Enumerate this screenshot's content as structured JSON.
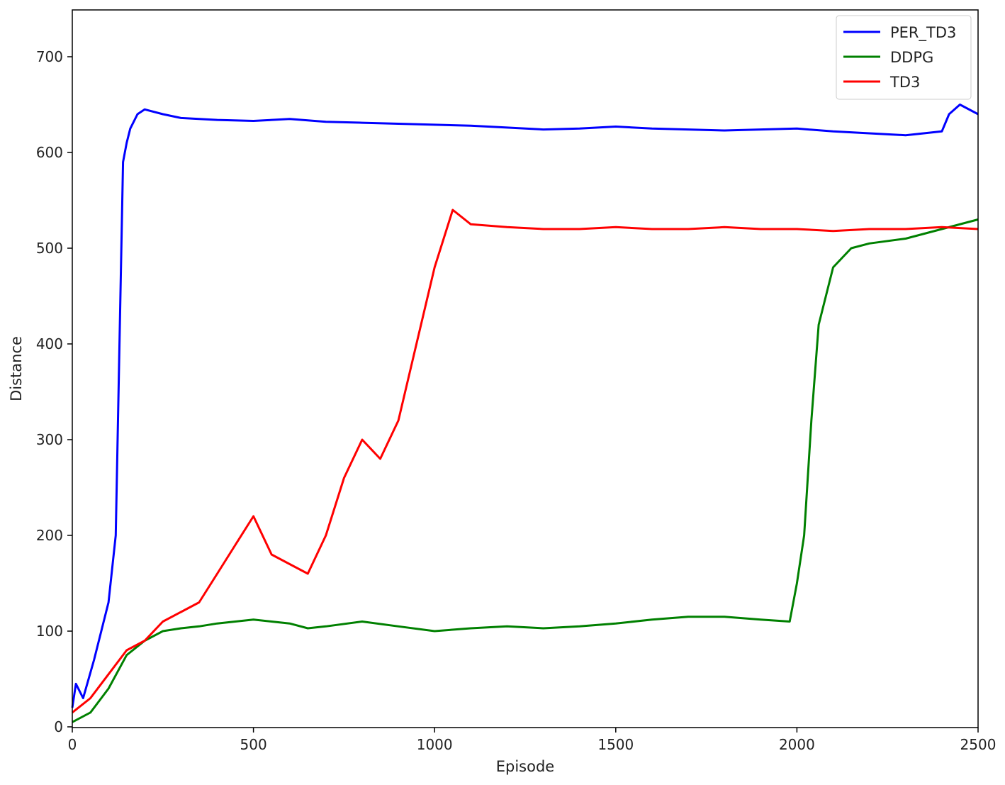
{
  "chart_data": {
    "type": "line",
    "xlabel": "Episode",
    "ylabel": "Distance",
    "xlim": [
      0,
      2500
    ],
    "ylim": [
      0,
      750
    ],
    "xticks": [
      "0",
      "500",
      "1000",
      "1500",
      "2000",
      "2500"
    ],
    "yticks": [
      "0",
      "100",
      "200",
      "300",
      "400",
      "500",
      "600",
      "700"
    ],
    "grid": false,
    "legend_position": "top-right",
    "series": [
      {
        "name": "PER_TD3",
        "color": "#0000ff",
        "x": [
          0,
          10,
          30,
          60,
          80,
          100,
          120,
          140,
          150,
          160,
          180,
          200,
          250,
          300,
          400,
          500,
          600,
          700,
          800,
          900,
          1000,
          1100,
          1200,
          1300,
          1400,
          1500,
          1600,
          1700,
          1800,
          1900,
          2000,
          2100,
          2200,
          2300,
          2400,
          2420,
          2450,
          2500
        ],
        "y": [
          20,
          45,
          30,
          70,
          100,
          130,
          200,
          590,
          610,
          625,
          640,
          645,
          640,
          636,
          634,
          633,
          635,
          632,
          631,
          630,
          629,
          628,
          626,
          624,
          625,
          627,
          625,
          624,
          623,
          624,
          625,
          622,
          620,
          618,
          622,
          640,
          650,
          640
        ]
      },
      {
        "name": "DDPG",
        "color": "#008000",
        "x": [
          0,
          50,
          100,
          150,
          200,
          250,
          300,
          350,
          400,
          450,
          500,
          550,
          600,
          650,
          700,
          800,
          900,
          1000,
          1100,
          1200,
          1300,
          1400,
          1500,
          1600,
          1700,
          1800,
          1900,
          1980,
          2000,
          2020,
          2040,
          2060,
          2080,
          2100,
          2150,
          2200,
          2300,
          2400,
          2500
        ],
        "y": [
          5,
          15,
          40,
          75,
          90,
          100,
          103,
          105,
          108,
          110,
          112,
          110,
          108,
          103,
          105,
          110,
          105,
          100,
          103,
          105,
          103,
          105,
          108,
          112,
          115,
          115,
          112,
          110,
          150,
          200,
          320,
          420,
          450,
          480,
          500,
          505,
          510,
          520,
          530
        ]
      },
      {
        "name": "TD3",
        "color": "#ff0000",
        "x": [
          0,
          50,
          100,
          150,
          200,
          250,
          300,
          350,
          400,
          450,
          500,
          550,
          600,
          650,
          700,
          750,
          800,
          850,
          900,
          950,
          1000,
          1050,
          1100,
          1200,
          1300,
          1400,
          1500,
          1600,
          1700,
          1800,
          1900,
          2000,
          2100,
          2200,
          2300,
          2400,
          2500
        ],
        "y": [
          15,
          30,
          55,
          80,
          90,
          110,
          120,
          130,
          160,
          190,
          220,
          180,
          170,
          160,
          200,
          260,
          300,
          280,
          320,
          400,
          480,
          540,
          525,
          522,
          520,
          520,
          522,
          520,
          520,
          522,
          520,
          520,
          518,
          520,
          520,
          522,
          520
        ]
      }
    ]
  }
}
